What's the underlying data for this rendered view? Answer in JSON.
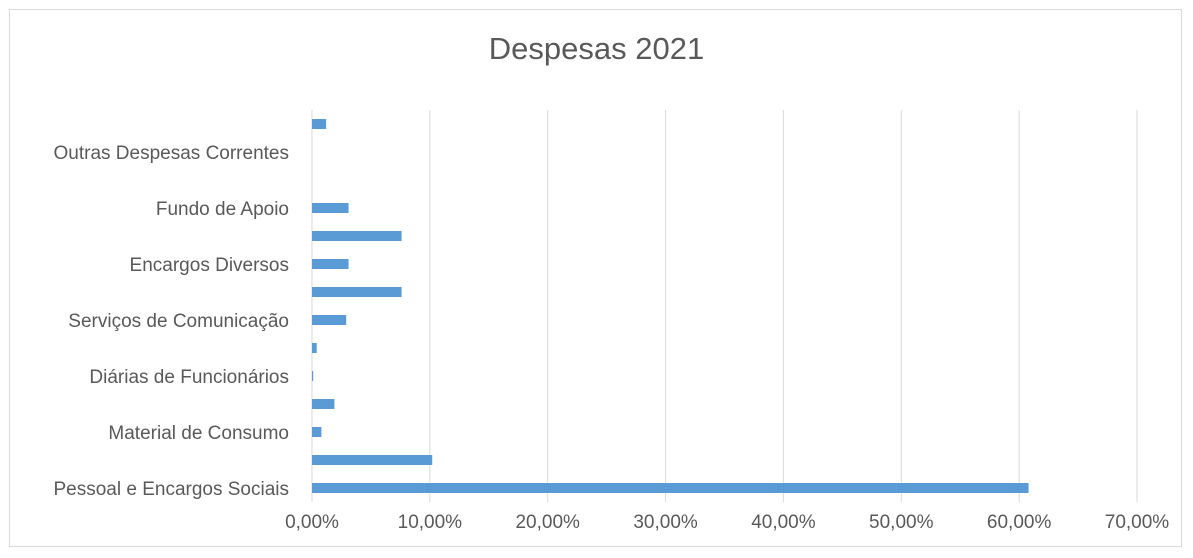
{
  "chart_data": {
    "type": "bar",
    "orientation": "horizontal",
    "title": "Despesas 2021",
    "xlabel": "",
    "ylabel": "",
    "xlim": [
      0,
      70
    ],
    "x_ticks": [
      "0,00%",
      "10,00%",
      "20,00%",
      "30,00%",
      "40,00%",
      "50,00%",
      "60,00%",
      "70,00%"
    ],
    "grid": true,
    "legend": "none",
    "categories": [
      "Pessoal e Encargos Sociais",
      "",
      "Material de Consumo",
      "",
      "Diárias de Funcionários",
      "",
      "Serviços de Comunicação",
      "",
      "Encargos Diversos",
      "",
      "Fundo de Apoio",
      "",
      "Outras Despesas Correntes",
      ""
    ],
    "values": [
      60.8,
      10.2,
      0.8,
      1.9,
      0.1,
      0.4,
      2.9,
      7.6,
      3.1,
      7.6,
      3.1,
      0,
      0,
      1.2
    ],
    "bar_color": "#5b9bd5"
  }
}
